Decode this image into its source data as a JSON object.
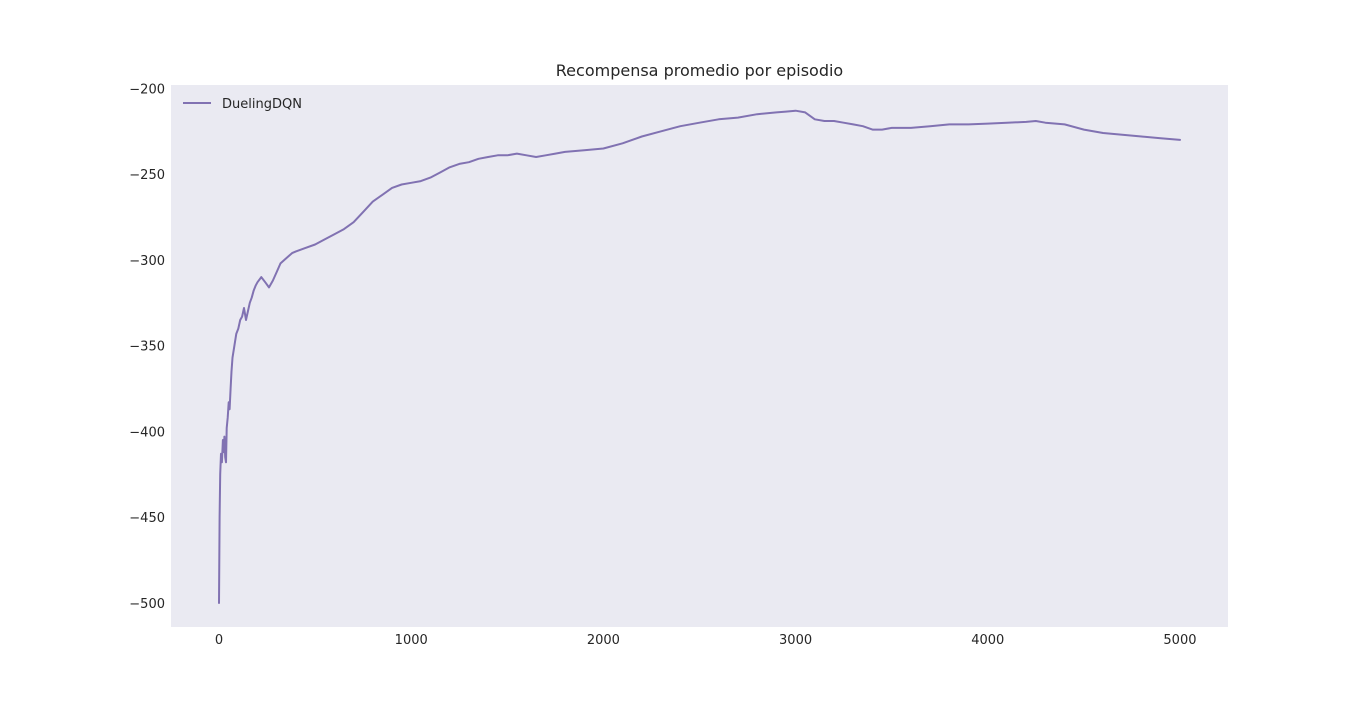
{
  "chart_data": {
    "type": "line",
    "title": "Recompensa promedio por episodio",
    "xlabel": "",
    "ylabel": "",
    "xlim": [
      -250,
      5250
    ],
    "ylim": [
      -514,
      -198
    ],
    "xticks": [
      0,
      1000,
      2000,
      3000,
      4000,
      5000
    ],
    "xtick_labels": [
      "0",
      "1000",
      "2000",
      "3000",
      "4000",
      "5000"
    ],
    "yticks": [
      -500,
      -450,
      -400,
      -350,
      -300,
      -250,
      -200
    ],
    "ytick_labels": [
      "−500",
      "−450",
      "−400",
      "−350",
      "−300",
      "−250",
      "−200"
    ],
    "grid": false,
    "legend_position": "top-left",
    "colors": {
      "plot_background": "#eaeaf2",
      "series": "#8172b2"
    },
    "series": [
      {
        "name": "DuelingDQN",
        "x": [
          0,
          3,
          6,
          10,
          15,
          20,
          25,
          28,
          32,
          36,
          40,
          45,
          50,
          55,
          60,
          65,
          70,
          80,
          90,
          100,
          110,
          120,
          130,
          140,
          150,
          160,
          170,
          180,
          190,
          200,
          220,
          240,
          260,
          280,
          300,
          320,
          340,
          360,
          380,
          400,
          450,
          500,
          550,
          600,
          650,
          700,
          750,
          800,
          850,
          900,
          950,
          1000,
          1050,
          1100,
          1150,
          1200,
          1250,
          1300,
          1350,
          1400,
          1450,
          1500,
          1550,
          1600,
          1650,
          1700,
          1750,
          1800,
          1900,
          2000,
          2100,
          2200,
          2300,
          2400,
          2500,
          2600,
          2700,
          2800,
          2900,
          2950,
          3000,
          3050,
          3100,
          3150,
          3200,
          3250,
          3300,
          3350,
          3400,
          3450,
          3500,
          3600,
          3700,
          3800,
          3900,
          4000,
          4100,
          4200,
          4250,
          4300,
          4400,
          4500,
          4600,
          4700,
          4800,
          4900,
          5000
        ],
        "values": [
          -500,
          -450,
          -425,
          -413,
          -418,
          -405,
          -412,
          -403,
          -415,
          -418,
          -398,
          -392,
          -383,
          -387,
          -375,
          -365,
          -357,
          -350,
          -343,
          -340,
          -335,
          -333,
          -328,
          -335,
          -330,
          -325,
          -322,
          -318,
          -315,
          -313,
          -310,
          -313,
          -316,
          -312,
          -307,
          -302,
          -300,
          -298,
          -296,
          -295,
          -293,
          -291,
          -288,
          -285,
          -282,
          -278,
          -272,
          -266,
          -262,
          -258,
          -256,
          -255,
          -254,
          -252,
          -249,
          -246,
          -244,
          -243,
          -241,
          -240,
          -239,
          -239,
          -238,
          -239,
          -240,
          -239,
          -238,
          -237,
          -236,
          -235,
          -232,
          -228,
          -225,
          -222,
          -220,
          -218,
          -217,
          -215,
          -214,
          -213.5,
          -213,
          -214,
          -218,
          -219,
          -219,
          -220,
          -221,
          -222,
          -224,
          -224,
          -223,
          -223,
          -222,
          -221,
          -221,
          -220.5,
          -220,
          -219.5,
          -219,
          -220,
          -221,
          -224,
          -226,
          -227,
          -228,
          -229,
          -230
        ]
      }
    ]
  }
}
